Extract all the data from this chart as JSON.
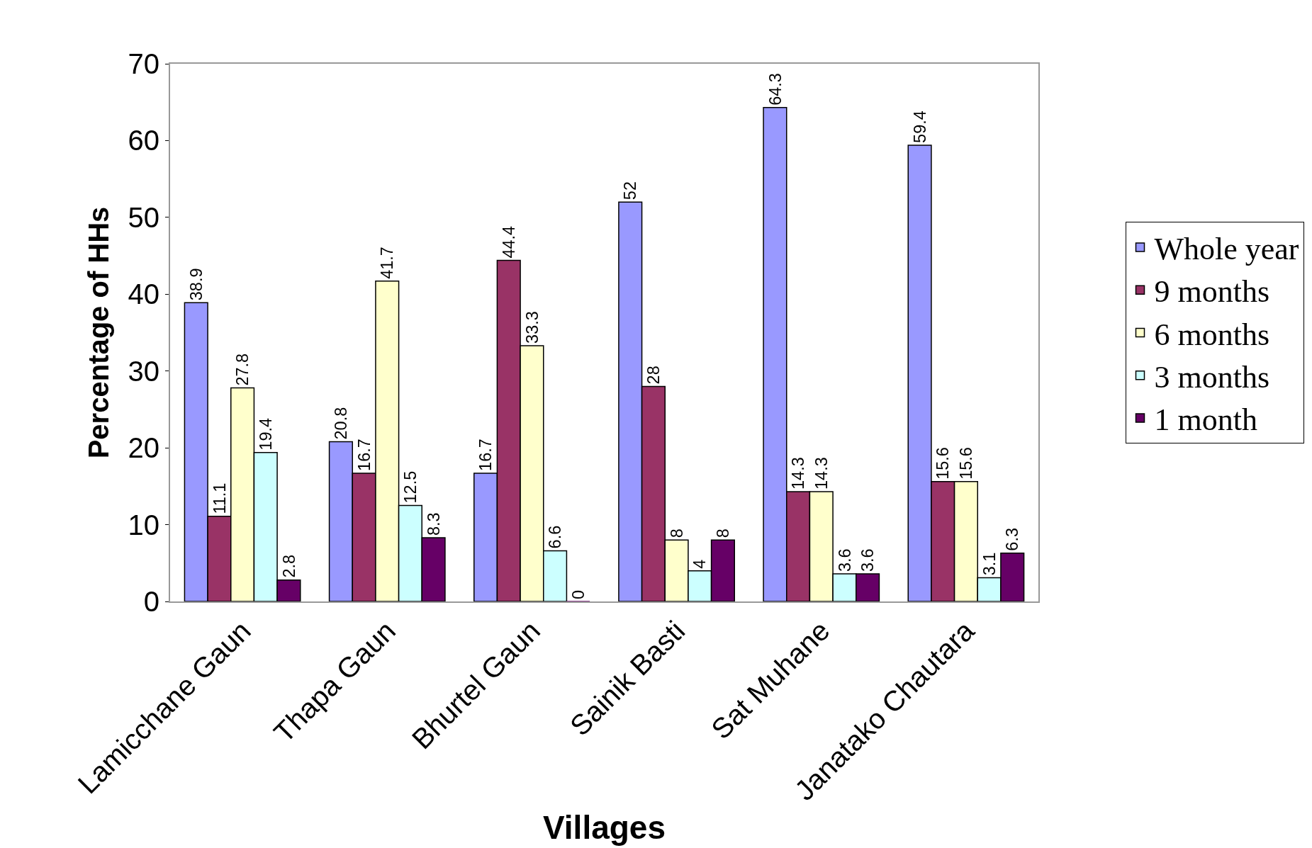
{
  "chart_data": {
    "type": "bar",
    "xlabel": "Villages",
    "ylabel": "Percentage of HHs",
    "categories": [
      "Lamicchane Gaun",
      "Thapa Gaun",
      "Bhurtel Gaun",
      "Sainik Basti",
      "Sat Muhane",
      "Janatako Chautara"
    ],
    "series": [
      {
        "name": "Whole year",
        "color": "#9999ff",
        "values": [
          38.9,
          20.8,
          16.7,
          52,
          64.3,
          59.4
        ]
      },
      {
        "name": "9 months",
        "color": "#993366",
        "values": [
          11.1,
          16.7,
          44.4,
          28,
          14.3,
          15.6
        ]
      },
      {
        "name": "6 months",
        "color": "#ffffcc",
        "values": [
          27.8,
          41.7,
          33.3,
          8,
          14.3,
          15.6
        ]
      },
      {
        "name": "3 months",
        "color": "#ccffff",
        "values": [
          19.4,
          12.5,
          6.6,
          4,
          3.6,
          3.1
        ]
      },
      {
        "name": "1 month",
        "color": "#660066",
        "values": [
          2.8,
          8.3,
          0,
          8,
          3.6,
          6.3
        ]
      }
    ],
    "ylim": [
      0,
      70
    ],
    "yticks": [
      0,
      10,
      20,
      30,
      40,
      50,
      60,
      70
    ],
    "legend": "right",
    "data_labels": true
  }
}
